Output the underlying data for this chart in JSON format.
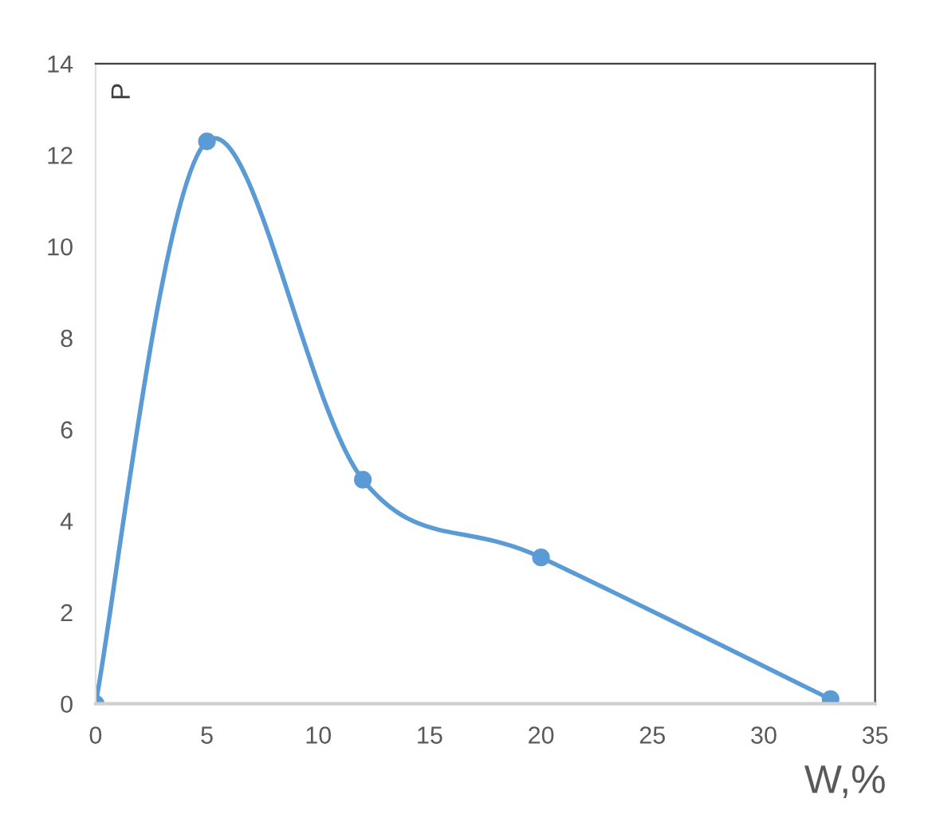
{
  "chart_data": {
    "type": "line",
    "xlabel": "W,%",
    "ylabel": "P",
    "x": [
      0,
      5,
      12,
      20,
      33
    ],
    "series": [
      {
        "color": "#5b9bd5",
        "values": [
          0,
          12.3,
          4.9,
          3.2,
          0.1
        ]
      }
    ],
    "xlim": [
      0,
      35
    ],
    "ylim": [
      0,
      14
    ],
    "xticks": [
      0,
      5,
      10,
      15,
      20,
      25,
      30,
      35
    ],
    "yticks": [
      0,
      2,
      4,
      6,
      8,
      10,
      12,
      14
    ],
    "marker": "circle",
    "line_style": "solid",
    "grid": false,
    "legend": false
  }
}
